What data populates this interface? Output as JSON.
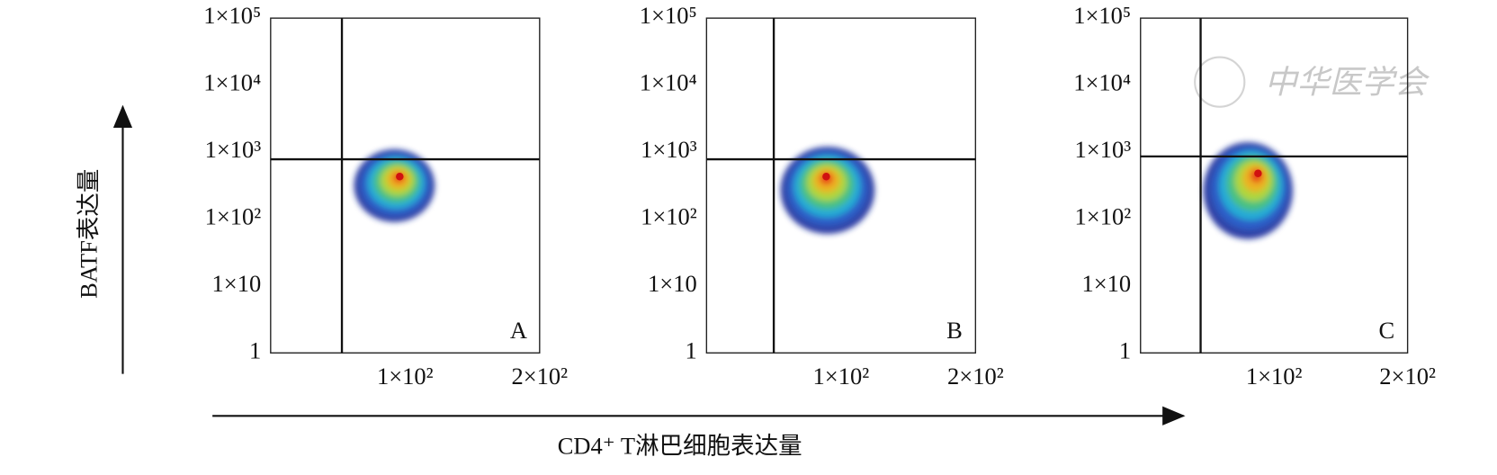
{
  "figure": {
    "y_axis_title": "BATF表达量",
    "x_axis_title": "CD4⁺ T淋巴细胞表达量",
    "watermark": "中华医学会"
  },
  "chart_data": [
    {
      "type": "density",
      "label": "A",
      "log_y": true,
      "xlim": [
        0,
        200
      ],
      "xticks": [
        {
          "value": 100,
          "label": "1×10²"
        },
        {
          "value": 200,
          "label": "2×10²"
        }
      ],
      "ylim": [
        1,
        100000
      ],
      "yticks": [
        1,
        {
          "value": 10,
          "label": "1×10"
        },
        {
          "value": 100,
          "label": "1×10²"
        },
        {
          "value": 1000,
          "label": "1×10³"
        },
        {
          "value": 10000,
          "label": "1×10⁴"
        },
        {
          "value": 100000,
          "label": "1×10⁵"
        }
      ],
      "gate_x": 53,
      "gate_y": 780,
      "cluster": {
        "x": [
          62,
          122
        ],
        "y": [
          90,
          1100
        ],
        "peak": [
          96,
          430
        ]
      }
    },
    {
      "type": "density",
      "label": "B",
      "log_y": true,
      "xlim": [
        0,
        200
      ],
      "xticks": [
        {
          "value": 100,
          "label": "1×10²"
        },
        {
          "value": 200,
          "label": "2×10²"
        }
      ],
      "ylim": [
        1,
        100000
      ],
      "yticks": [
        1,
        {
          "value": 10,
          "label": "1×10"
        },
        {
          "value": 100,
          "label": "1×10²"
        },
        {
          "value": 1000,
          "label": "1×10³"
        },
        {
          "value": 10000,
          "label": "1×10⁴"
        },
        {
          "value": 100000,
          "label": "1×10⁵"
        }
      ],
      "gate_x": 50,
      "gate_y": 780,
      "cluster": {
        "x": [
          55,
          125
        ],
        "y": [
          60,
          1200
        ],
        "peak": [
          89,
          430
        ]
      }
    },
    {
      "type": "density",
      "label": "C",
      "log_y": true,
      "xlim": [
        0,
        200
      ],
      "xticks": [
        {
          "value": 100,
          "label": "1×10²"
        },
        {
          "value": 200,
          "label": "2×10²"
        }
      ],
      "ylim": [
        1,
        100000
      ],
      "yticks": [
        1,
        {
          "value": 10,
          "label": "1×10"
        },
        {
          "value": 100,
          "label": "1×10²"
        },
        {
          "value": 1000,
          "label": "1×10³"
        },
        {
          "value": 10000,
          "label": "1×10⁴"
        },
        {
          "value": 100000,
          "label": "1×10⁵"
        }
      ],
      "gate_x": 45,
      "gate_y": 860,
      "cluster": {
        "x": [
          47,
          114
        ],
        "y": [
          50,
          1400
        ],
        "peak": [
          88,
          480
        ]
      }
    }
  ]
}
